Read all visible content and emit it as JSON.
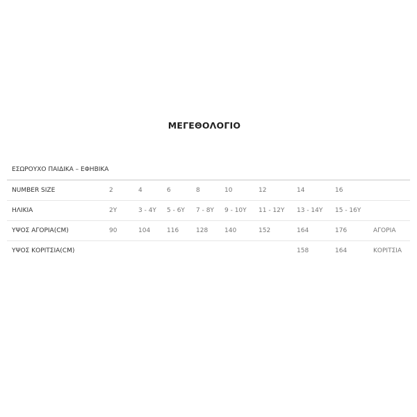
{
  "title": "ΜΕΓΕΘΟΛΟΓΙΟ",
  "caption": "ΕΣΩΡΟΥΧΟ ΠΑΙΔΙΚΑ – ΕΦΗΒΙΚΑ",
  "rows": [
    {
      "label": "NUMBER SIZE",
      "cells": [
        "2",
        "4",
        "6",
        "8",
        "10",
        "12",
        "14",
        "16",
        ""
      ]
    },
    {
      "label": "ΗΛΙΚΙΑ",
      "cells": [
        "2Y",
        "3 - 4Y",
        "5 - 6Y",
        "7 - 8Y",
        "9 - 10Y",
        "11 - 12Y",
        "13 - 14Y",
        "15 - 16Y",
        ""
      ]
    },
    {
      "label": "ΥΨΟΣ ΑΓΟΡΙΑ(CM)",
      "cells": [
        "90",
        "104",
        "116",
        "128",
        "140",
        "152",
        "164",
        "176",
        "ΑΓΟΡΙΑ"
      ]
    },
    {
      "label": "ΥΨΟΣ ΚΟΡΙΤΣΙΑ(CM)",
      "cells": [
        "",
        "",
        "",
        "",
        "",
        "",
        "158",
        "164",
        "ΚΟΡΙΤΣΙΑ"
      ]
    }
  ]
}
